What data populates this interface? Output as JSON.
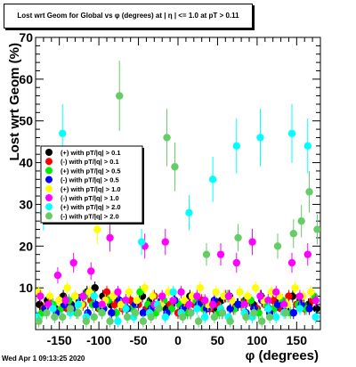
{
  "chart_data": {
    "type": "scatter",
    "title": "Lost wrt Geom for Global vs φ (degrees) at | η | <= 1.0 at pT > 0.11",
    "xlabel": "φ (degrees)",
    "ylabel": "Lost wrt Geom (%)",
    "xlim": [
      -180,
      180
    ],
    "ylim": [
      0,
      70
    ],
    "x_ticks": [
      -150,
      -100,
      -50,
      0,
      50,
      100,
      150
    ],
    "y_ticks": [
      10,
      20,
      30,
      40,
      50,
      60,
      70
    ],
    "legend_position": "left",
    "series": [
      {
        "name": "(+) with pT/|q| > 0.1",
        "color": "#000000",
        "x": [
          -175,
          -165,
          -155,
          -145,
          -135,
          -125,
          -115,
          -105,
          -95,
          -85,
          -75,
          -65,
          -55,
          -45,
          -35,
          -25,
          -15,
          -5,
          5,
          15,
          25,
          35,
          45,
          55,
          65,
          75,
          85,
          95,
          105,
          115,
          125,
          135,
          145,
          155,
          165,
          175
        ],
        "y": [
          6,
          7,
          5,
          8,
          6,
          7,
          9,
          10,
          8,
          6,
          7,
          5,
          6,
          8,
          7,
          6,
          5,
          7,
          6,
          8,
          7,
          6,
          5,
          7,
          8,
          6,
          7,
          6,
          8,
          5,
          7,
          6,
          8,
          7,
          6,
          5
        ]
      },
      {
        "name": "(-) with pT/|q| > 0.1",
        "color": "#ff0000",
        "x": [
          -170,
          -160,
          -150,
          -140,
          -130,
          -120,
          -110,
          -100,
          -90,
          -80,
          -70,
          -60,
          -50,
          -40,
          -30,
          -20,
          -10,
          0,
          10,
          20,
          30,
          40,
          50,
          60,
          70,
          80,
          90,
          100,
          110,
          120,
          130,
          140,
          150,
          160,
          170
        ],
        "y": [
          5,
          6,
          7,
          5,
          8,
          6,
          7,
          5,
          9,
          6,
          5,
          7,
          6,
          5,
          8,
          7,
          6,
          4,
          5,
          6,
          7,
          5,
          6,
          8,
          5,
          6,
          7,
          5,
          6,
          7,
          5,
          8,
          6,
          5,
          7
        ]
      },
      {
        "name": "(+) with pT/|q| > 0.5",
        "color": "#00ee00",
        "x": [
          -172,
          -158,
          -148,
          -138,
          -128,
          -118,
          -108,
          -98,
          -88,
          -78,
          -68,
          -58,
          -48,
          -38,
          -28,
          -18,
          -8,
          2,
          12,
          22,
          32,
          42,
          52,
          62,
          72,
          82,
          92,
          102,
          112,
          122,
          132,
          142,
          152,
          162,
          172
        ],
        "y": [
          4,
          6,
          5,
          7,
          4,
          8,
          6,
          5,
          7,
          4,
          6,
          5,
          9,
          6,
          4,
          7,
          5,
          6,
          4,
          7,
          5,
          6,
          4,
          8,
          5,
          6,
          7,
          4,
          6,
          5,
          7,
          4,
          6,
          5,
          8
        ]
      },
      {
        "name": "(-) with pT/|q| > 0.5",
        "color": "#0000ff",
        "x": [
          -168,
          -154,
          -144,
          -134,
          -124,
          -114,
          -104,
          -94,
          -84,
          -74,
          -64,
          -54,
          -44,
          -34,
          -24,
          -14,
          -4,
          6,
          16,
          26,
          36,
          46,
          56,
          66,
          76,
          86,
          96,
          106,
          116,
          126,
          136,
          146,
          156,
          166
        ],
        "y": [
          5,
          4,
          6,
          5,
          7,
          4,
          6,
          5,
          4,
          7,
          5,
          6,
          4,
          5,
          6,
          4,
          7,
          5,
          4,
          6,
          5,
          7,
          4,
          5,
          6,
          4,
          5,
          7,
          4,
          6,
          5,
          4,
          6,
          5
        ]
      },
      {
        "name": "(+) with pT/|q| > 1.0",
        "color": "#ffff00",
        "x": [
          -176,
          -162,
          -150,
          -140,
          -130,
          -122,
          -112,
          -102,
          -92,
          -82,
          -72,
          -62,
          -52,
          -42,
          -32,
          -22,
          -12,
          8,
          18,
          28,
          38,
          48,
          58,
          68,
          78,
          88,
          98,
          108,
          118,
          128,
          138,
          148,
          158,
          168
        ],
        "y": [
          9,
          8,
          7,
          10,
          8,
          6,
          9,
          24,
          7,
          8,
          6,
          9,
          7,
          10,
          8,
          6,
          9,
          7,
          8,
          10,
          6,
          9,
          8,
          7,
          9,
          8,
          10,
          7,
          9,
          8,
          6,
          10,
          8,
          9
        ]
      },
      {
        "name": "(-) with pT/|q| > 1.0",
        "color": "#ff00ff",
        "x": [
          -174,
          -164,
          -152,
          -142,
          -132,
          -120,
          -110,
          -96,
          -86,
          -76,
          -66,
          -42,
          -30,
          -20,
          -16,
          -6,
          4,
          14,
          24,
          34,
          44,
          54,
          64,
          74,
          84,
          94,
          104,
          114,
          124,
          134,
          144,
          154,
          164,
          174
        ],
        "y": [
          8,
          6,
          13,
          7,
          16,
          8,
          14,
          6,
          22,
          9,
          7,
          20,
          6,
          8,
          21,
          7,
          9,
          6,
          8,
          7,
          6,
          18,
          8,
          16,
          6,
          21,
          8,
          7,
          9,
          6,
          16,
          8,
          18,
          7
        ]
      },
      {
        "name": "(+) with pT/|q| > 2.0",
        "color": "#00ffff",
        "x": [
          -178,
          -170,
          -158,
          -146,
          -136,
          -126,
          -116,
          -106,
          -96,
          -86,
          -76,
          -66,
          -56,
          -46,
          -36,
          -26,
          -16,
          -6,
          4,
          14,
          24,
          34,
          44,
          54,
          64,
          74,
          84,
          94,
          104,
          114,
          124,
          134,
          144,
          154,
          164,
          174
        ],
        "y": [
          3,
          28,
          5,
          47,
          4,
          6,
          3,
          8,
          4,
          30,
          2,
          5,
          3,
          21,
          4,
          6,
          3,
          9,
          4,
          28,
          5,
          3,
          36,
          5,
          3,
          44,
          4,
          3,
          46,
          5,
          3,
          4,
          47,
          5,
          44,
          3
        ]
      },
      {
        "name": "(-) with pT/|q| > 2.0",
        "color": "#66cc66",
        "x": [
          -176,
          -166,
          -156,
          -146,
          -136,
          -126,
          -116,
          -106,
          -96,
          -86,
          -74,
          -64,
          -54,
          -44,
          -34,
          -24,
          -14,
          -4,
          6,
          16,
          26,
          36,
          46,
          56,
          66,
          76,
          86,
          96,
          106,
          116,
          126,
          136,
          146,
          156,
          166,
          176
        ],
        "y": [
          2,
          4,
          3,
          3,
          5,
          4,
          2,
          3,
          4,
          2,
          56,
          3,
          4,
          2,
          3,
          5,
          46,
          39,
          3,
          4,
          2,
          18,
          3,
          4,
          2,
          22,
          3,
          4,
          2,
          3,
          20,
          4,
          23,
          26,
          33,
          24
        ]
      }
    ]
  },
  "footer_text": "Wed Apr  1 09:13:25 2020"
}
